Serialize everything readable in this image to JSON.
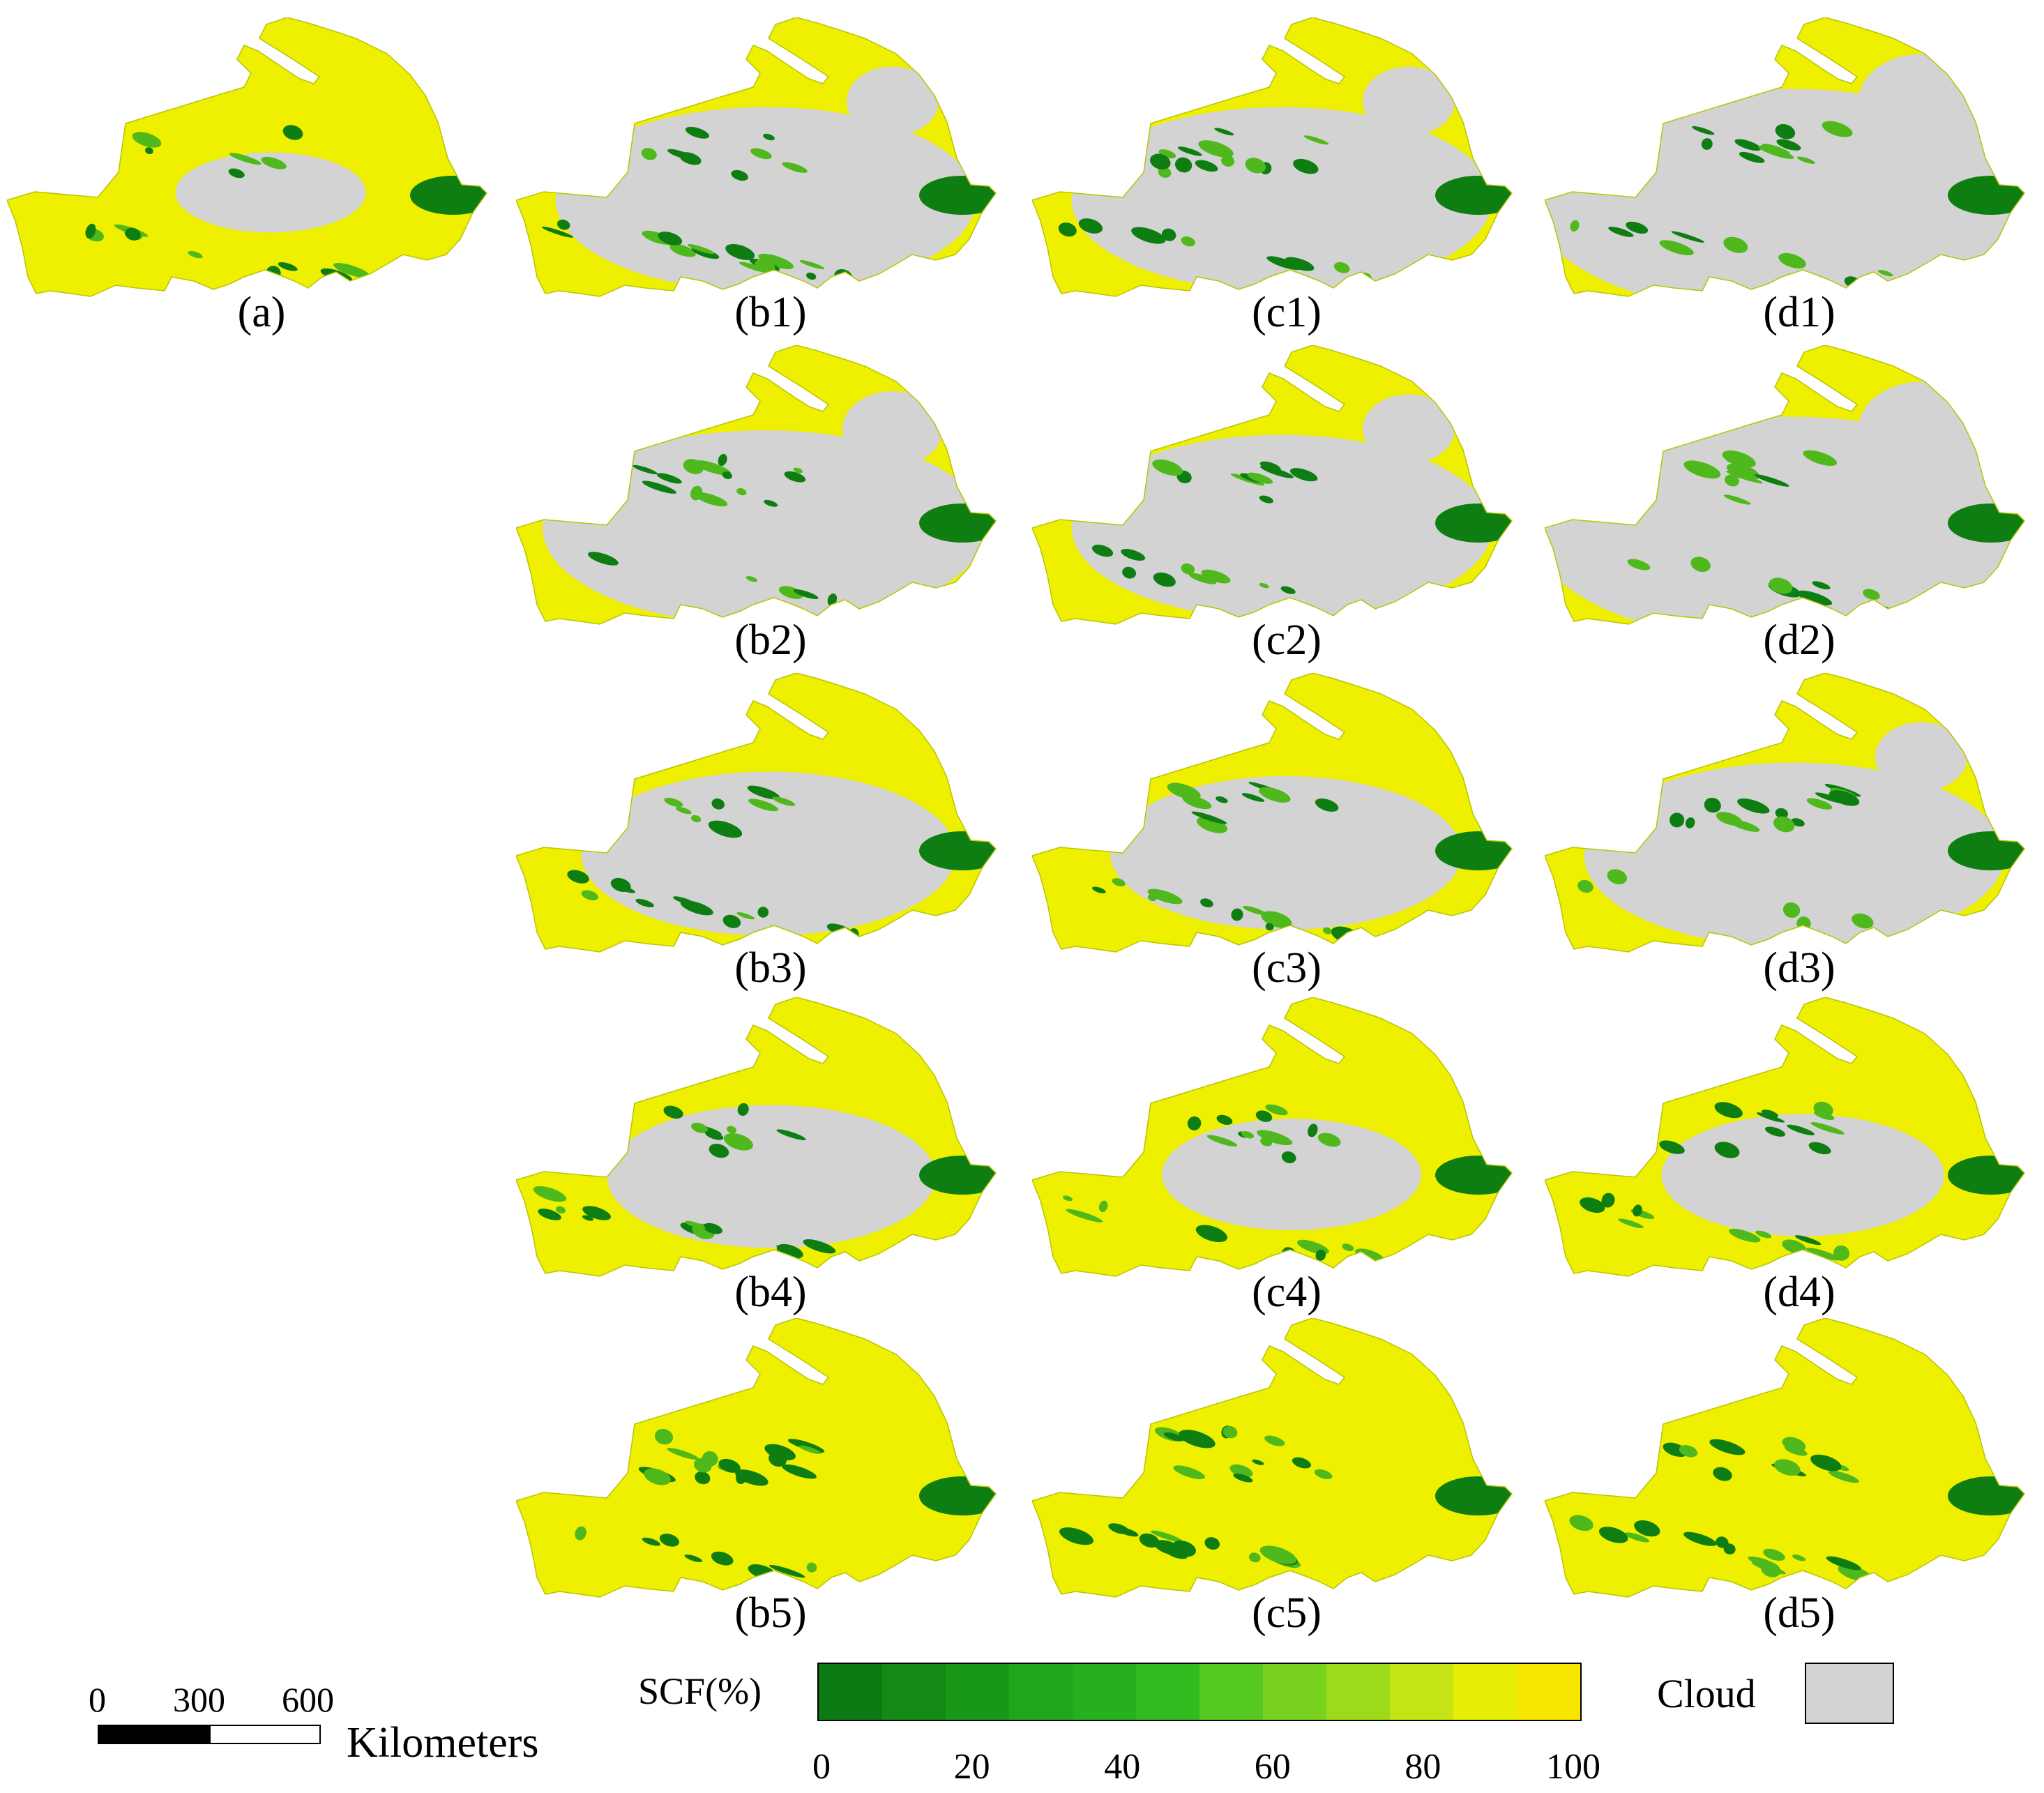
{
  "panels": [
    {
      "label": "(a)",
      "col": 0,
      "row": 0,
      "cloud": 0.05,
      "green": 0.35
    },
    {
      "label": "(b1)",
      "col": 1,
      "row": 0,
      "cloud": 0.55,
      "green": 0.55
    },
    {
      "label": "(c1)",
      "col": 2,
      "row": 0,
      "cloud": 0.55,
      "green": 0.45
    },
    {
      "label": "(d1)",
      "col": 3,
      "row": 0,
      "cloud": 0.75,
      "green": 0.35
    },
    {
      "label": "(b2)",
      "col": 1,
      "row": 1,
      "cloud": 0.6,
      "green": 0.35
    },
    {
      "label": "(c2)",
      "col": 2,
      "row": 1,
      "cloud": 0.55,
      "green": 0.35
    },
    {
      "label": "(d2)",
      "col": 3,
      "row": 1,
      "cloud": 0.75,
      "green": 0.3
    },
    {
      "label": "(b3)",
      "col": 1,
      "row": 2,
      "cloud": 0.45,
      "green": 0.4
    },
    {
      "label": "(c3)",
      "col": 2,
      "row": 2,
      "cloud": 0.4,
      "green": 0.4
    },
    {
      "label": "(d3)",
      "col": 3,
      "row": 2,
      "cloud": 0.55,
      "green": 0.4
    },
    {
      "label": "(b4)",
      "col": 1,
      "row": 3,
      "cloud": 0.35,
      "green": 0.45
    },
    {
      "label": "(c4)",
      "col": 2,
      "row": 3,
      "cloud": 0.2,
      "green": 0.45
    },
    {
      "label": "(d4)",
      "col": 3,
      "row": 3,
      "cloud": 0.25,
      "green": 0.45
    },
    {
      "label": "(b5)",
      "col": 1,
      "row": 4,
      "cloud": 0.0,
      "green": 0.6
    },
    {
      "label": "(c5)",
      "col": 2,
      "row": 4,
      "cloud": 0.0,
      "green": 0.6
    },
    {
      "label": "(d5)",
      "col": 3,
      "row": 4,
      "cloud": 0.0,
      "green": 0.6
    }
  ],
  "scale_bar": {
    "ticks": [
      "0",
      "300",
      "600"
    ],
    "unit": "Kilometers"
  },
  "legend": {
    "title": "SCF(%)",
    "ticks": [
      "0",
      "20",
      "40",
      "60",
      "80",
      "100"
    ],
    "colors": [
      "#0b7a10",
      "#128a14",
      "#199818",
      "#1fa61b",
      "#26b01d",
      "#31bb1f",
      "#55c91f",
      "#79d21d",
      "#9dda1a",
      "#c4e414",
      "#e6ee06",
      "#f7e600"
    ],
    "cloud_label": "Cloud",
    "cloud_color": "#d3d3d3"
  },
  "map_colors": {
    "snow": "#eef000",
    "forest": "#0e7e12",
    "cloud": "#d3d3d3"
  }
}
